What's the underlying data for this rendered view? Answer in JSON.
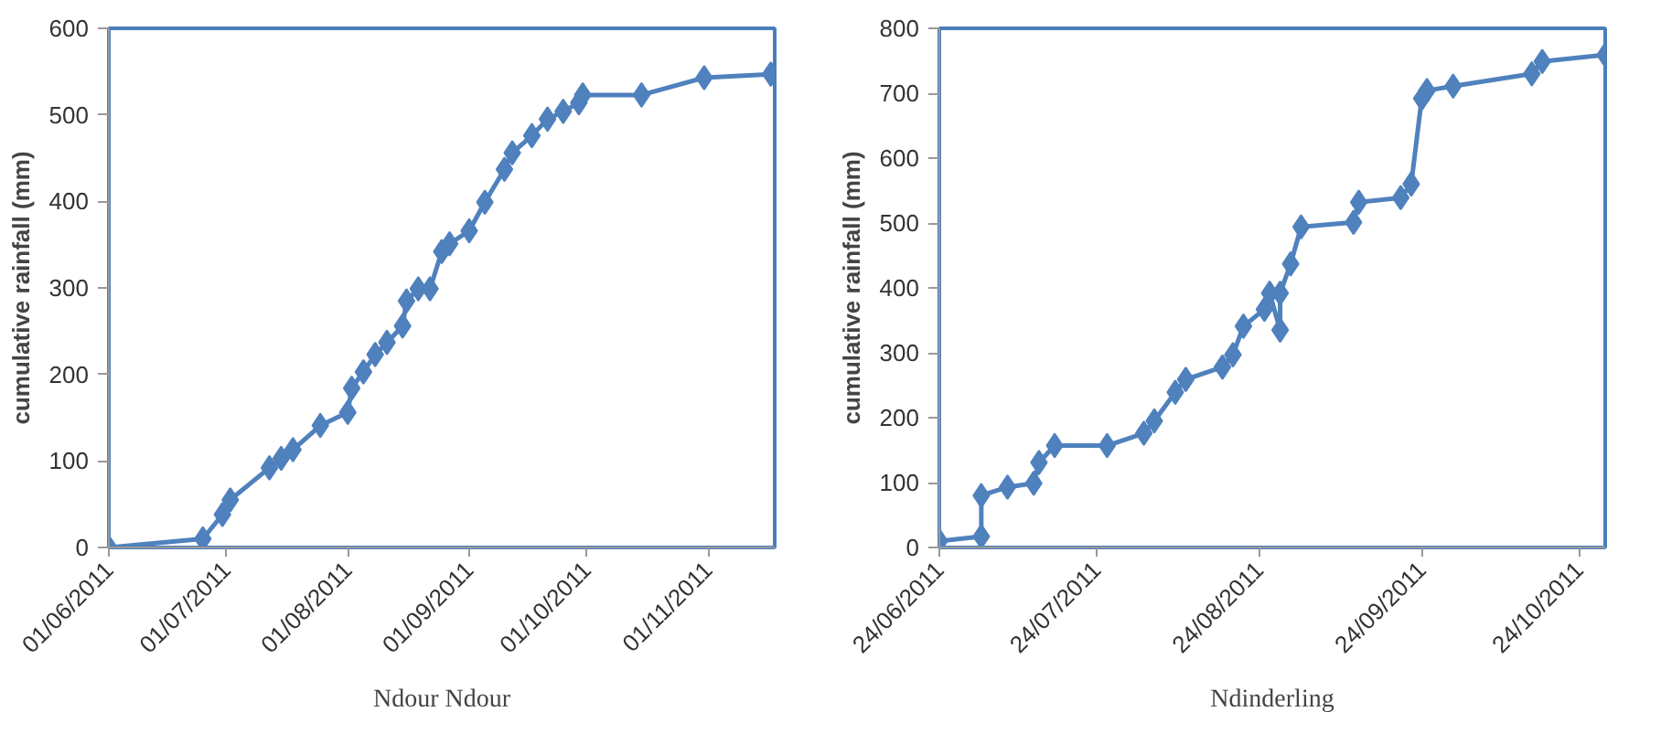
{
  "chart_data": [
    {
      "type": "line",
      "title": "Ndour Ndour",
      "ylabel": "cumulative rainfall (mm)",
      "marker": "diamond",
      "line_style": "solid",
      "grid": false,
      "xlim": [
        "2011-06-01",
        "2011-11-18"
      ],
      "xticks": [
        {
          "value": "2011-06-01",
          "label": "01/06/2011"
        },
        {
          "value": "2011-07-01",
          "label": "01/07/2011"
        },
        {
          "value": "2011-08-01",
          "label": "01/08/2011"
        },
        {
          "value": "2011-09-01",
          "label": "01/09/2011"
        },
        {
          "value": "2011-10-01",
          "label": "01/10/2011"
        },
        {
          "value": "2011-11-01",
          "label": "01/11/2011"
        }
      ],
      "ylim": [
        0,
        600
      ],
      "yticks": [
        0,
        100,
        200,
        300,
        400,
        500,
        600
      ],
      "x": [
        "2011-06-01",
        "2011-06-25",
        "2011-06-30",
        "2011-07-02",
        "2011-07-12",
        "2011-07-15",
        "2011-07-18",
        "2011-07-25",
        "2011-08-01",
        "2011-08-02",
        "2011-08-05",
        "2011-08-08",
        "2011-08-11",
        "2011-08-15",
        "2011-08-16",
        "2011-08-19",
        "2011-08-22",
        "2011-08-25",
        "2011-08-27",
        "2011-09-01",
        "2011-09-05",
        "2011-09-10",
        "2011-09-12",
        "2011-09-17",
        "2011-09-21",
        "2011-09-25",
        "2011-09-29",
        "2011-09-30",
        "2011-10-15",
        "2011-10-31",
        "2011-11-17"
      ],
      "series": [
        {
          "color": "#4f81bd",
          "values": [
            0,
            10,
            38,
            55,
            92,
            103,
            113,
            141,
            156,
            184,
            203,
            223,
            237,
            256,
            285,
            299,
            299,
            342,
            351,
            366,
            399,
            437,
            456,
            476,
            495,
            504,
            514,
            523,
            523,
            543,
            547
          ]
        }
      ]
    },
    {
      "type": "line",
      "title": "Ndinderling",
      "ylabel": "cumulative rainfall (mm)",
      "marker": "diamond",
      "line_style": "solid",
      "grid": false,
      "xlim": [
        "2011-06-24",
        "2011-10-29"
      ],
      "xticks": [
        {
          "value": "2011-06-24",
          "label": "24/06/2011"
        },
        {
          "value": "2011-07-24",
          "label": "24/07/2011"
        },
        {
          "value": "2011-08-24",
          "label": "24/08/2011"
        },
        {
          "value": "2011-09-24",
          "label": "24/09/2011"
        },
        {
          "value": "2011-10-24",
          "label": "24/10/2011"
        }
      ],
      "ylim": [
        0,
        800
      ],
      "yticks": [
        0,
        100,
        200,
        300,
        400,
        500,
        600,
        700,
        800
      ],
      "x": [
        "2011-06-24",
        "2011-07-02",
        "2011-07-02",
        "2011-07-07",
        "2011-07-12",
        "2011-07-13",
        "2011-07-16",
        "2011-07-26",
        "2011-08-02",
        "2011-08-04",
        "2011-08-08",
        "2011-08-10",
        "2011-08-17",
        "2011-08-19",
        "2011-08-21",
        "2011-08-25",
        "2011-08-26",
        "2011-08-28",
        "2011-08-28",
        "2011-08-30",
        "2011-09-01",
        "2011-09-11",
        "2011-09-12",
        "2011-09-20",
        "2011-09-22",
        "2011-09-24",
        "2011-09-25",
        "2011-09-30",
        "2011-10-15",
        "2011-10-17",
        "2011-10-29"
      ],
      "series": [
        {
          "color": "#4f81bd",
          "values": [
            10,
            17,
            80,
            93,
            99,
            131,
            157,
            157,
            176,
            195,
            239,
            259,
            278,
            297,
            341,
            367,
            392,
            335,
            392,
            437,
            494,
            501,
            532,
            539,
            560,
            692,
            704,
            711,
            730,
            749,
            759
          ]
        }
      ]
    }
  ]
}
